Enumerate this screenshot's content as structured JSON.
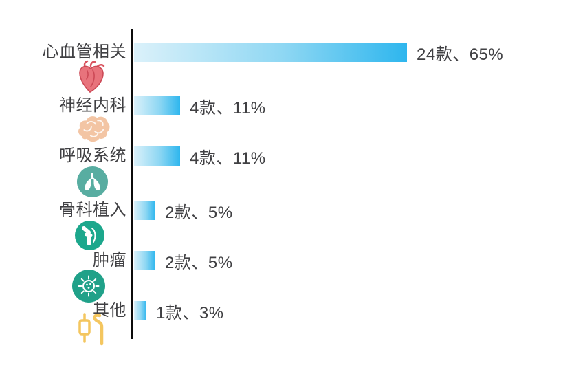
{
  "chart_data": {
    "type": "bar",
    "orientation": "horizontal",
    "title": "",
    "categories": [
      "心血管相关",
      "神经内科",
      "呼吸系统",
      "骨科植入",
      "肿瘤",
      "其他"
    ],
    "values": [
      65,
      11,
      11,
      5,
      5,
      3
    ],
    "counts": [
      24,
      4,
      4,
      2,
      2,
      1
    ],
    "data_labels": [
      "24款、65%",
      "4款、11%",
      "4款、11%",
      "2款、5%",
      "2款、5%",
      "1款、3%"
    ],
    "xlim": [
      0,
      65
    ],
    "grid": false,
    "legend": false,
    "unit": "款",
    "bar_gradient_start": "#dbf1fa",
    "bar_gradient_end": "#2eb6ee",
    "axis_line_color": "#0b0b0b",
    "text_color": "#404043"
  },
  "rows": [
    {
      "label": "心血管相关",
      "pct": 65,
      "value_label": "24款、65%",
      "icon": "heart-icon"
    },
    {
      "label": "神经内科",
      "pct": 11,
      "value_label": "4款、11%",
      "icon": "brain-icon"
    },
    {
      "label": "呼吸系统",
      "pct": 11,
      "value_label": "4款、11%",
      "icon": "lungs-icon"
    },
    {
      "label": "骨科植入",
      "pct": 5,
      "value_label": "2款、5%",
      "icon": "knee-joint-icon"
    },
    {
      "label": "肿瘤",
      "pct": 5,
      "value_label": "2款、5%",
      "icon": "tumor-cell-icon"
    },
    {
      "label": "其他",
      "pct": 3,
      "value_label": "1款、3%",
      "icon": "candlestick-icon"
    }
  ],
  "icon_colors": {
    "heart_fill": "#e8737c",
    "heart_stroke": "#cc4956",
    "brain_fill": "#f3c5a4",
    "lungs_circle": "#58ada1",
    "knee_circle": "#1ca78c",
    "tumor_circle": "#20a189",
    "candlestick": "#f4c65f"
  }
}
